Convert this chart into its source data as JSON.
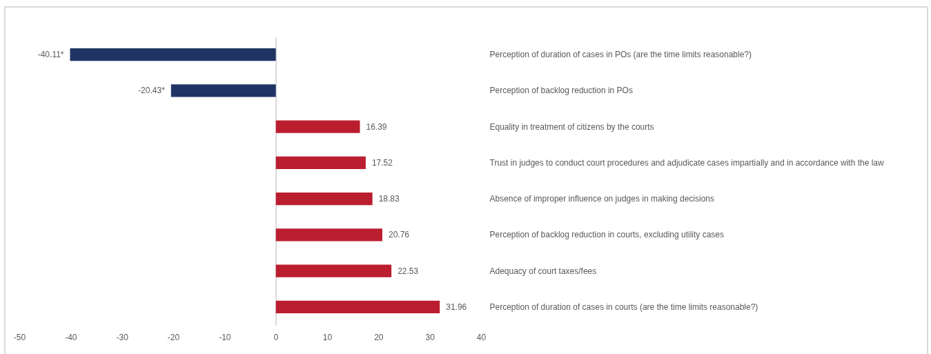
{
  "chart_data": {
    "type": "bar",
    "orientation": "horizontal",
    "categories": [
      "Perception of duration of cases in POs (are the time limits reasonable?)",
      "Perception of backlog reduction in POs",
      "Equality in treatment of citizens by the courts",
      "Trust in judges to conduct court procedures and adjudicate cases impartially and in accordance with the law",
      "Absence of improper influence on judges in making decisions",
      "Perception of backlog reduction in courts, excluding utility cases",
      "Adequacy of court taxes/fees",
      "Perception of duration of cases in courts (are the time limits reasonable?)"
    ],
    "values": [
      -40.11,
      -20.43,
      16.39,
      17.52,
      18.83,
      20.76,
      22.53,
      31.96
    ],
    "colors": [
      "#1f3464",
      "#1f3464",
      "#bb1e2f",
      "#bb1e2f",
      "#bb1e2f",
      "#bb1e2f",
      "#bb1e2f",
      "#bb1e2f"
    ],
    "value_labels": [
      "-40.11*",
      "-20.43*",
      "16.39",
      "17.52",
      "18.83",
      "20.76",
      "22.53",
      "31.96"
    ],
    "xlim": [
      -50,
      40
    ],
    "xticks": [
      -50,
      -40,
      -30,
      -20,
      -10,
      0,
      10,
      20,
      30,
      40
    ]
  }
}
